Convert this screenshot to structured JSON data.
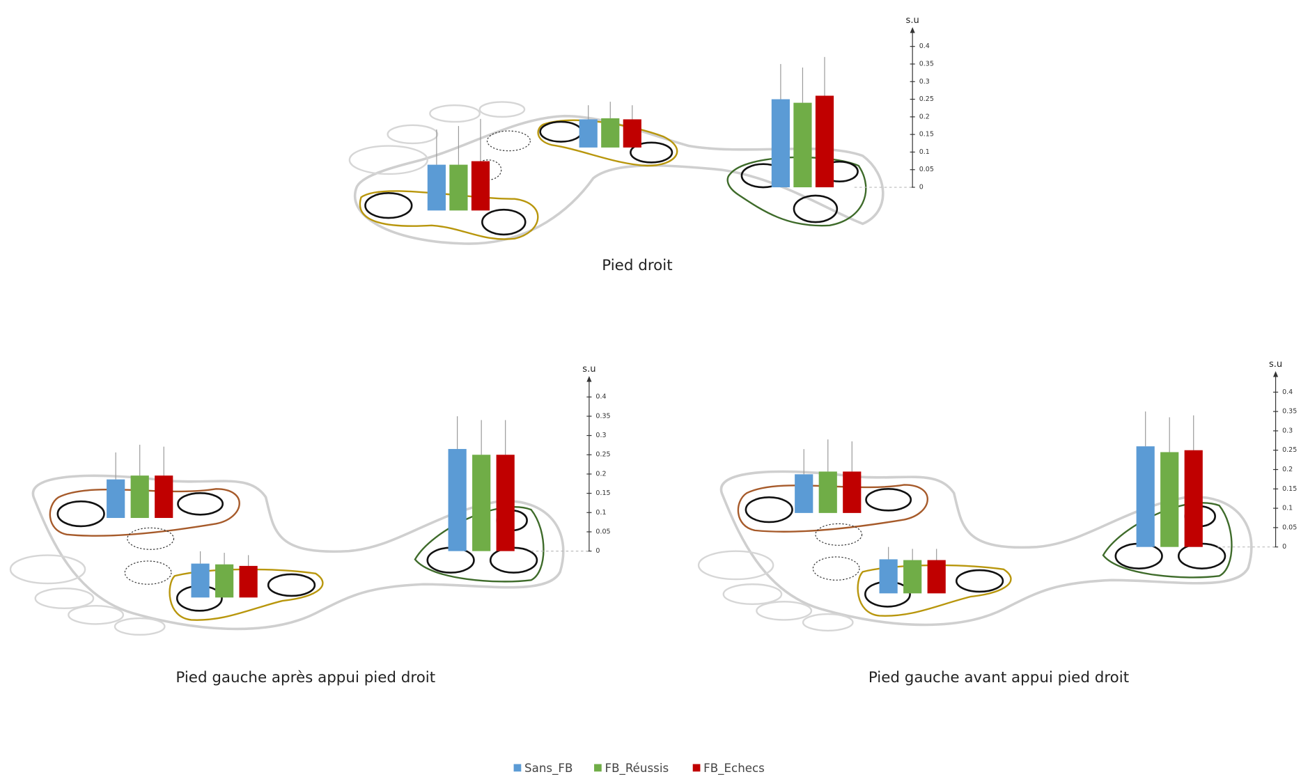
{
  "chart_data": [
    {
      "type": "bar",
      "title": "Pied droit",
      "y_label": "s.u",
      "categories": [
        null,
        null,
        null
      ],
      "ylim": [
        0,
        0.45
      ],
      "yticks": [
        0,
        0.05,
        0.1,
        0.15,
        0.2,
        0.25,
        0.3,
        0.35,
        0.4
      ],
      "series": [
        {
          "name": "Sans_FB",
          "color": "#5b9bd5",
          "values": [
            0.13,
            0.08,
            0.25
          ],
          "errors": [
            0.1,
            0.04,
            0.1
          ]
        },
        {
          "name": "FB_Réussis",
          "color": "#70ad47",
          "values": [
            0.13,
            0.083,
            0.24
          ],
          "errors": [
            0.11,
            0.047,
            0.1
          ]
        },
        {
          "name": "FB_Echecs",
          "color": "#c00000",
          "values": [
            0.14,
            0.08,
            0.26
          ],
          "errors": [
            0.12,
            0.04,
            0.11
          ]
        }
      ]
    },
    {
      "type": "bar",
      "title": "Pied gauche après appui pied droit",
      "y_label": "s.u",
      "categories": [
        null,
        null,
        null
      ],
      "ylim": [
        0,
        0.45
      ],
      "yticks": [
        0,
        0.05,
        0.1,
        0.15,
        0.2,
        0.25,
        0.3,
        0.35,
        0.4
      ],
      "series": [
        {
          "name": "Sans_FB",
          "color": "#5b9bd5",
          "values": [
            0.1,
            0.088,
            0.265
          ],
          "errors": [
            0.07,
            0.032,
            0.085
          ]
        },
        {
          "name": "FB_Réussis",
          "color": "#70ad47",
          "values": [
            0.11,
            0.086,
            0.25
          ],
          "errors": [
            0.08,
            0.03,
            0.09
          ]
        },
        {
          "name": "FB_Echecs",
          "color": "#c00000",
          "values": [
            0.11,
            0.082,
            0.25
          ],
          "errors": [
            0.075,
            0.028,
            0.09
          ]
        }
      ]
    },
    {
      "type": "bar",
      "title": "Pied gauche avant appui pied droit",
      "y_label": "s.u",
      "categories": [
        null,
        null,
        null
      ],
      "ylim": [
        0,
        0.45
      ],
      "yticks": [
        0,
        0.05,
        0.1,
        0.15,
        0.2,
        0.25,
        0.3,
        0.35,
        0.4
      ],
      "series": [
        {
          "name": "Sans_FB",
          "color": "#5b9bd5",
          "values": [
            0.1,
            0.088,
            0.26
          ],
          "errors": [
            0.065,
            0.032,
            0.09
          ]
        },
        {
          "name": "FB_Réussis",
          "color": "#70ad47",
          "values": [
            0.107,
            0.086,
            0.245
          ],
          "errors": [
            0.083,
            0.029,
            0.09
          ]
        },
        {
          "name": "FB_Echecs",
          "color": "#c00000",
          "values": [
            0.107,
            0.086,
            0.25
          ],
          "errors": [
            0.078,
            0.029,
            0.09
          ]
        }
      ]
    }
  ]
}
